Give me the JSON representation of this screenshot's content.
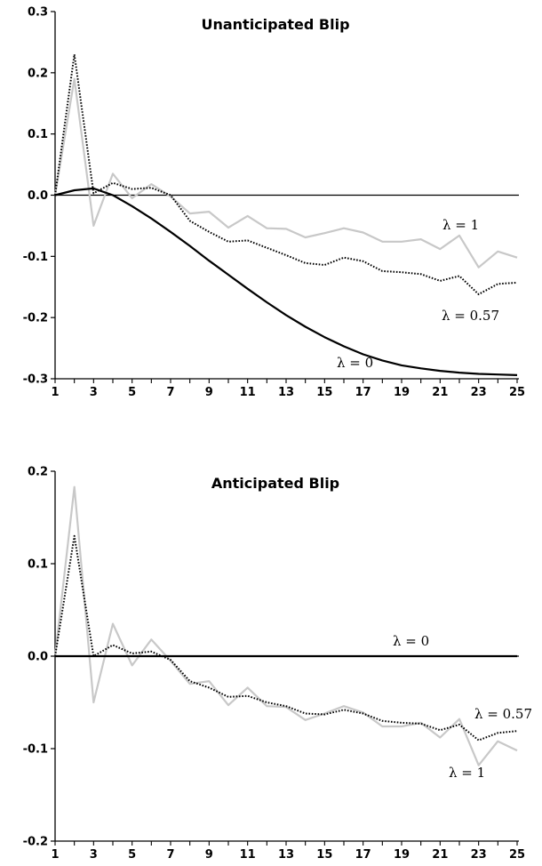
{
  "chart_data": [
    {
      "type": "line",
      "title": "Unanticipated Blip",
      "x": [
        1,
        2,
        3,
        4,
        5,
        6,
        7,
        8,
        9,
        10,
        11,
        12,
        13,
        14,
        15,
        16,
        17,
        18,
        19,
        20,
        21,
        22,
        23,
        24,
        25
      ],
      "x_tick_labels": [
        "1",
        "3",
        "5",
        "7",
        "9",
        "11",
        "13",
        "15",
        "17",
        "19",
        "21",
        "23",
        "25"
      ],
      "y_tick_labels": [
        "0.3",
        "0.2",
        "0.1",
        "0.0",
        "-0.1",
        "-0.2",
        "-0.3"
      ],
      "ylim": [
        -0.3,
        0.3
      ],
      "zero_line": true,
      "series": [
        {
          "name": "λ = 1",
          "color": "#c8c8c8",
          "style": "solid-gray",
          "values": [
            0.0,
            0.19,
            -0.05,
            0.035,
            -0.005,
            0.018,
            -0.002,
            -0.03,
            -0.027,
            -0.053,
            -0.034,
            -0.054,
            -0.055,
            -0.069,
            -0.062,
            -0.054,
            -0.061,
            -0.076,
            -0.076,
            -0.072,
            -0.088,
            -0.066,
            -0.118,
            -0.092,
            -0.102
          ]
        },
        {
          "name": "λ = 0.57",
          "color": "#000000",
          "style": "dotted",
          "values": [
            0.0,
            0.23,
            0.003,
            0.02,
            0.01,
            0.012,
            0.0,
            -0.042,
            -0.06,
            -0.076,
            -0.074,
            -0.086,
            -0.098,
            -0.111,
            -0.114,
            -0.102,
            -0.108,
            -0.124,
            -0.126,
            -0.129,
            -0.14,
            -0.132,
            -0.162,
            -0.145,
            -0.143
          ]
        },
        {
          "name": "λ = 0",
          "color": "#000000",
          "style": "solid",
          "values": [
            0.0,
            0.008,
            0.011,
            0.0,
            -0.018,
            -0.038,
            -0.06,
            -0.083,
            -0.107,
            -0.13,
            -0.153,
            -0.175,
            -0.196,
            -0.215,
            -0.232,
            -0.247,
            -0.26,
            -0.27,
            -0.278,
            -0.283,
            -0.287,
            -0.29,
            -0.292,
            -0.293,
            -0.294
          ]
        }
      ],
      "annotations": [
        "λ = 1",
        "λ = 0.57",
        "λ = 0"
      ]
    },
    {
      "type": "line",
      "title": "Anticipated Blip",
      "x": [
        1,
        2,
        3,
        4,
        5,
        6,
        7,
        8,
        9,
        10,
        11,
        12,
        13,
        14,
        15,
        16,
        17,
        18,
        19,
        20,
        21,
        22,
        23,
        24,
        25
      ],
      "x_tick_labels": [
        "1",
        "3",
        "5",
        "7",
        "9",
        "11",
        "13",
        "15",
        "17",
        "19",
        "21",
        "23",
        "25"
      ],
      "y_tick_labels": [
        "0.2",
        "0.1",
        "0.0",
        "-0.1",
        "-0.2"
      ],
      "ylim": [
        -0.2,
        0.2
      ],
      "zero_line": true,
      "series": [
        {
          "name": "λ = 1",
          "color": "#c8c8c8",
          "style": "solid-gray",
          "values": [
            0.0,
            0.183,
            -0.05,
            0.035,
            -0.01,
            0.018,
            -0.005,
            -0.03,
            -0.027,
            -0.053,
            -0.034,
            -0.054,
            -0.055,
            -0.069,
            -0.062,
            -0.054,
            -0.061,
            -0.076,
            -0.076,
            -0.072,
            -0.088,
            -0.068,
            -0.118,
            -0.092,
            -0.102
          ]
        },
        {
          "name": "λ = 0.57",
          "color": "#000000",
          "style": "dotted",
          "values": [
            0.0,
            0.13,
            0.0,
            0.012,
            0.003,
            0.005,
            -0.004,
            -0.027,
            -0.034,
            -0.044,
            -0.043,
            -0.05,
            -0.054,
            -0.062,
            -0.063,
            -0.058,
            -0.062,
            -0.07,
            -0.072,
            -0.073,
            -0.08,
            -0.074,
            -0.091,
            -0.083,
            -0.081
          ]
        },
        {
          "name": "λ = 0",
          "color": "#000000",
          "style": "solid",
          "values": [
            0,
            0,
            0,
            0,
            0,
            0,
            0,
            0,
            0,
            0,
            0,
            0,
            0,
            0,
            0,
            0,
            0,
            0,
            0,
            0,
            0,
            0,
            0,
            0,
            0
          ]
        }
      ],
      "annotations": [
        "λ = 0",
        "λ = 0.57",
        "λ = 1"
      ]
    }
  ]
}
